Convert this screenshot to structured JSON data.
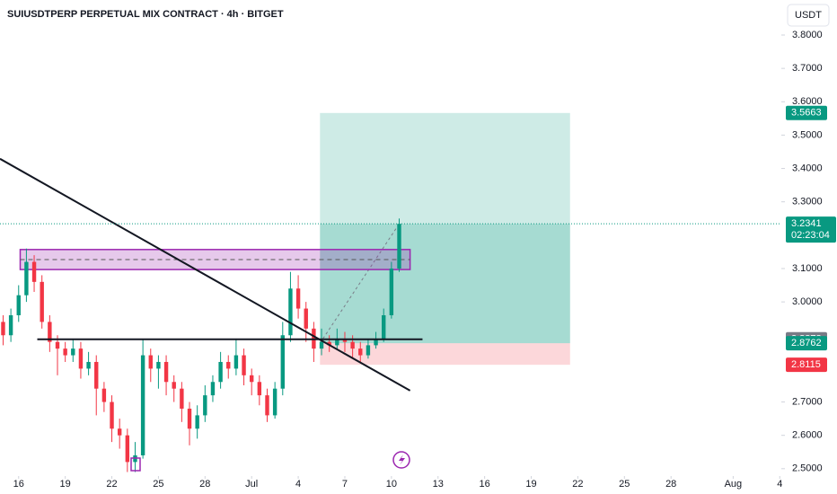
{
  "chart_data": {
    "type": "candlestick",
    "title": "SUIUSDTPERP PERPETUAL MIX CONTRACT · 4h · BITGET",
    "currency": "USDT",
    "countdown": "02:23:04",
    "up_color": "#089981",
    "down_color": "#f23645",
    "xlim": [
      -1.2,
      49.1
    ],
    "ylim": [
      2.478,
      3.905
    ],
    "xticks": [
      {
        "value": 0,
        "label": "16"
      },
      {
        "value": 3,
        "label": "19"
      },
      {
        "value": 6,
        "label": "22"
      },
      {
        "value": 9,
        "label": "25"
      },
      {
        "value": 12,
        "label": "28"
      },
      {
        "value": 15,
        "label": "Jul"
      },
      {
        "value": 18,
        "label": "4"
      },
      {
        "value": 21,
        "label": "7"
      },
      {
        "value": 24,
        "label": "10"
      },
      {
        "value": 27,
        "label": "13"
      },
      {
        "value": 30,
        "label": "16"
      },
      {
        "value": 33,
        "label": "19"
      },
      {
        "value": 36,
        "label": "22"
      },
      {
        "value": 39,
        "label": "25"
      },
      {
        "value": 42,
        "label": "28"
      },
      {
        "value": 46,
        "label": "Aug"
      },
      {
        "value": 49,
        "label": "4"
      }
    ],
    "yticks": [
      {
        "value": 2.5,
        "label": "2.5000"
      },
      {
        "value": 2.6,
        "label": "2.6000"
      },
      {
        "value": 2.7,
        "label": "2.7000"
      },
      {
        "value": 3.0,
        "label": "3.0000"
      },
      {
        "value": 3.1,
        "label": "3.1000"
      },
      {
        "value": 3.3,
        "label": "3.3000"
      },
      {
        "value": 3.4,
        "label": "3.4000"
      },
      {
        "value": 3.5,
        "label": "3.5000"
      },
      {
        "value": 3.6,
        "label": "3.6000"
      },
      {
        "value": 3.7,
        "label": "3.7000"
      },
      {
        "value": 3.8,
        "label": "3.8000"
      }
    ],
    "series": {
      "x": [
        -1,
        -0.5,
        0,
        0.5,
        1,
        1.5,
        2,
        2.5,
        3,
        3.5,
        4,
        4.5,
        5,
        5.5,
        6,
        6.5,
        7,
        7.5,
        8,
        8.5,
        9,
        9.5,
        10,
        10.5,
        11,
        11.5,
        12,
        12.5,
        13,
        13.5,
        14,
        14.5,
        15,
        15.5,
        16,
        16.5,
        17,
        17.5,
        18,
        18.5,
        19,
        19.5,
        20,
        20.5,
        21,
        21.5,
        22,
        22.5,
        23,
        23.5,
        24,
        24.5
      ],
      "open": [
        2.94,
        2.9,
        2.96,
        3.02,
        3.12,
        3.06,
        2.94,
        2.88,
        2.86,
        2.84,
        2.86,
        2.8,
        2.82,
        2.74,
        2.7,
        2.62,
        2.6,
        2.52,
        2.54,
        2.84,
        2.8,
        2.82,
        2.76,
        2.74,
        2.68,
        2.62,
        2.66,
        2.72,
        2.76,
        2.82,
        2.8,
        2.84,
        2.78,
        2.76,
        2.72,
        2.66,
        2.74,
        2.9,
        3.04,
        2.98,
        2.92,
        2.86,
        2.88,
        2.87,
        2.89,
        2.88,
        2.86,
        2.84,
        2.87,
        2.89,
        2.96,
        3.1
      ],
      "high": [
        2.96,
        2.98,
        3.05,
        3.16,
        3.14,
        3.08,
        2.96,
        2.9,
        2.88,
        2.89,
        2.88,
        2.85,
        2.84,
        2.76,
        2.72,
        2.65,
        2.62,
        2.58,
        2.89,
        2.86,
        2.84,
        2.84,
        2.78,
        2.76,
        2.7,
        2.69,
        2.75,
        2.78,
        2.85,
        2.84,
        2.89,
        2.86,
        2.8,
        2.78,
        2.74,
        2.76,
        2.94,
        3.09,
        3.08,
        3.0,
        2.94,
        2.92,
        2.9,
        2.92,
        2.91,
        2.9,
        2.88,
        2.89,
        2.91,
        2.98,
        3.12,
        3.25
      ],
      "low": [
        2.87,
        2.88,
        2.94,
        3.0,
        3.03,
        2.92,
        2.85,
        2.78,
        2.82,
        2.82,
        2.77,
        2.78,
        2.66,
        2.67,
        2.58,
        2.56,
        2.49,
        2.49,
        2.53,
        2.76,
        2.74,
        2.72,
        2.7,
        2.64,
        2.57,
        2.59,
        2.64,
        2.7,
        2.74,
        2.77,
        2.78,
        2.75,
        2.72,
        2.69,
        2.64,
        2.65,
        2.72,
        2.88,
        2.95,
        2.88,
        2.82,
        2.84,
        2.85,
        2.86,
        2.85,
        2.83,
        2.82,
        2.83,
        2.86,
        2.88,
        2.95,
        3.09
      ],
      "close": [
        2.9,
        2.96,
        3.02,
        3.12,
        3.06,
        2.94,
        2.88,
        2.86,
        2.84,
        2.86,
        2.8,
        2.82,
        2.74,
        2.7,
        2.62,
        2.6,
        2.52,
        2.54,
        2.84,
        2.8,
        2.82,
        2.76,
        2.74,
        2.68,
        2.62,
        2.66,
        2.72,
        2.76,
        2.82,
        2.8,
        2.84,
        2.78,
        2.76,
        2.72,
        2.66,
        2.74,
        2.9,
        3.04,
        2.98,
        2.92,
        2.86,
        2.88,
        2.87,
        2.89,
        2.88,
        2.86,
        2.84,
        2.87,
        2.89,
        2.96,
        3.1,
        3.2341
      ]
    },
    "zone": {
      "x": [
        0.1,
        25.2
      ],
      "y": [
        3.097,
        3.157
      ],
      "color": "#9c27b0"
    },
    "level": {
      "x": [
        1.2,
        26.0
      ],
      "value": 2.8878
    },
    "trendline": {
      "x": [
        -1.2,
        25.2
      ],
      "y": [
        3.429,
        2.734
      ]
    },
    "position": {
      "x": [
        19.4,
        35.5
      ],
      "entry": 2.8762,
      "target": 3.5663,
      "stop": 2.8115
    }
  }
}
